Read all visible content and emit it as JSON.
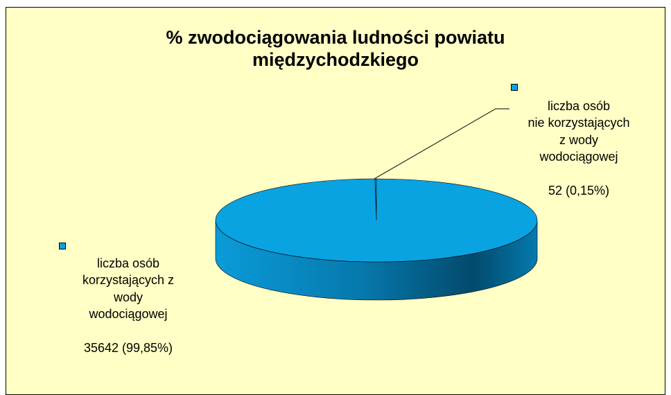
{
  "chart_data": {
    "type": "pie",
    "title": "% zwodociągowania ludności powiatu\nmiędzychodzkiego",
    "categories": [
      "liczba osób\nnie korzystających\nz wody\nwodociągowej",
      "liczba osób\nkorzystających z\nwody\nwodociągowej"
    ],
    "values": [
      52,
      35642
    ],
    "value_labels": [
      "52 (0,15%)",
      "35642 (99,85%)"
    ],
    "colors": [
      "#0aa3e2",
      "#0aa3e2"
    ]
  }
}
